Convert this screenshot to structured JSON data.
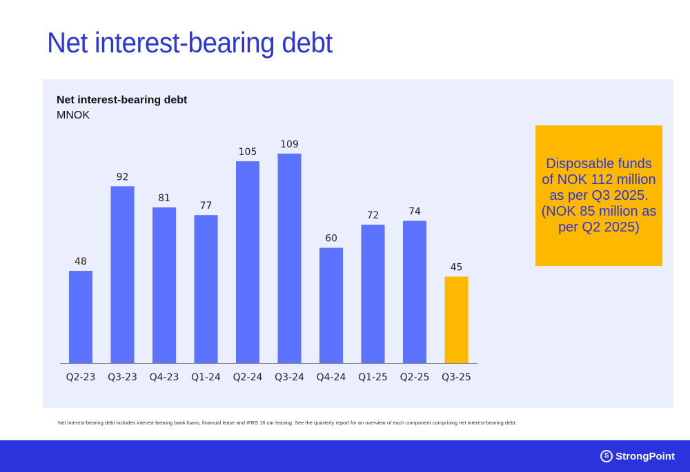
{
  "title": "Net interest-bearing debt",
  "chart_data": {
    "type": "bar",
    "title": "Net interest-bearing debt",
    "ylabel": "MNOK",
    "categories": [
      "Q2-23",
      "Q3-23",
      "Q4-23",
      "Q1-24",
      "Q2-24",
      "Q3-24",
      "Q4-24",
      "Q1-25",
      "Q2-25",
      "Q3-25"
    ],
    "values": [
      48,
      92,
      81,
      77,
      105,
      109,
      60,
      72,
      74,
      45
    ],
    "highlight_index": 9,
    "colors": {
      "bar": "#5b73ff",
      "highlight": "#ffb800"
    },
    "ylim": [
      0,
      120
    ],
    "grid": false
  },
  "note": "Disposable funds of NOK 112 million as per Q3 2025. (NOK 85 million as per Q2 2025)",
  "footnote": "Net interest-bearing debt includes interest-bearing bank loans, financial lease and IFRS 16 car leasing. See the quarterly report for an overview of each component comprising net interest-bearing debt.",
  "logo": "StrongPoint"
}
